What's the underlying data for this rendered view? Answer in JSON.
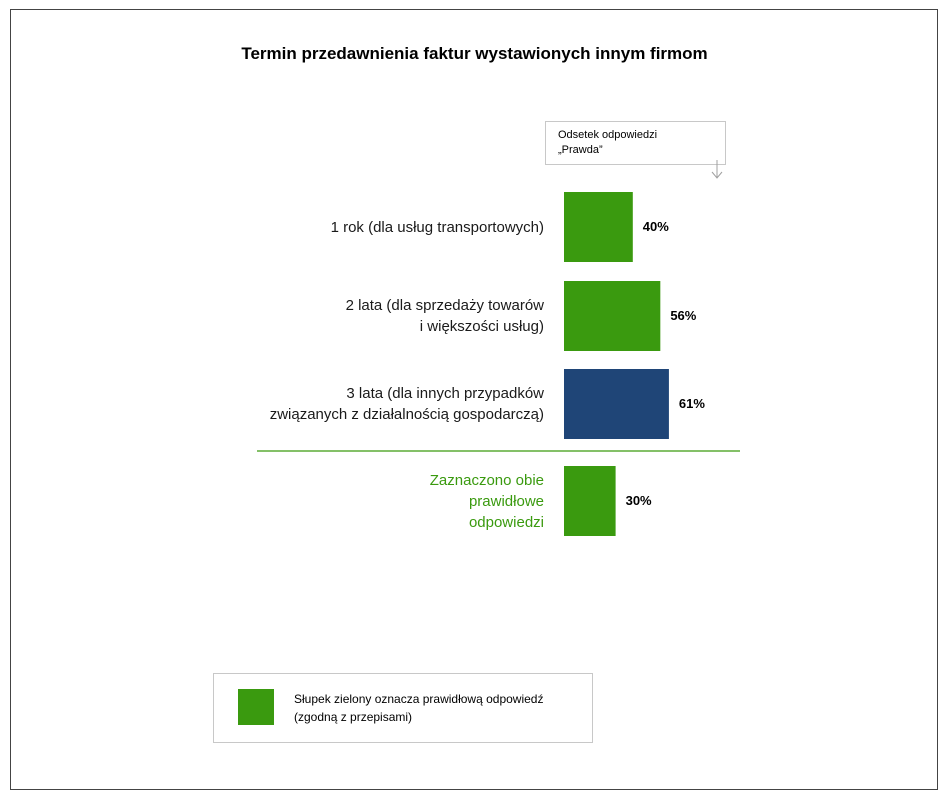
{
  "title": "Termin przedawnienia faktur wystawionych innym firmom",
  "column_header": [
    "Odsetek odpowiedzi",
    "„Prawda”"
  ],
  "colors": {
    "correct": "#3a9a0f",
    "other": "#1f4577",
    "divider": "#3a9a0f"
  },
  "chart_data": {
    "type": "bar",
    "orientation": "horizontal",
    "title": "Termin przedawnienia faktur wystawionych innym firmom",
    "xlim": [
      0,
      100
    ],
    "categories": [
      {
        "lines": [
          "1 rok (dla usług transportowych)"
        ],
        "value": 40,
        "label": "40%",
        "correct": true,
        "highlight": false
      },
      {
        "lines": [
          "2 lata (dla sprzedaży towarów",
          "i większości usług)"
        ],
        "value": 56,
        "label": "56%",
        "correct": true,
        "highlight": false
      },
      {
        "lines": [
          "3 lata (dla innych przypadków",
          "związanych z działalnością gospodarczą)"
        ],
        "value": 61,
        "label": "61%",
        "correct": false,
        "highlight": false
      },
      {
        "lines": [
          "Zaznaczono obie",
          "prawidłowe",
          "odpowiedzi"
        ],
        "value": 30,
        "label": "30%",
        "correct": true,
        "highlight": true
      }
    ]
  },
  "legend": {
    "text": [
      "Słupek zielony oznacza prawidłową odpowiedź",
      "(zgodną z przepisami)"
    ],
    "swatch_color": "#3a9a0f"
  }
}
